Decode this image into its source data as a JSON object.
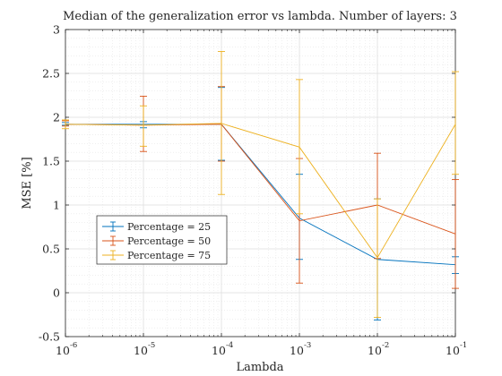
{
  "chart_data": {
    "type": "line",
    "title": "Median of the generalization error vs lambda. Number of layers: 3",
    "xlabel": "Lambda",
    "ylabel": "MSE [%]",
    "xscale": "log",
    "xlim": [
      1e-06,
      0.1
    ],
    "ylim": [
      -0.5,
      3
    ],
    "grid": true,
    "minor_grid": true,
    "legend_position": "lower-left",
    "x": [
      1e-06,
      1e-05,
      0.0001,
      0.001,
      0.01,
      0.1
    ],
    "x_tick_labels": [
      {
        "base": "10",
        "exp": "-6"
      },
      {
        "base": "10",
        "exp": "-5"
      },
      {
        "base": "10",
        "exp": "-4"
      },
      {
        "base": "10",
        "exp": "-3"
      },
      {
        "base": "10",
        "exp": "-2"
      },
      {
        "base": "10",
        "exp": "-1"
      }
    ],
    "y_ticks": [
      -0.5,
      0,
      0.5,
      1,
      1.5,
      2,
      2.5,
      3
    ],
    "y_tick_labels": [
      "-0.5",
      "0",
      "0.5",
      "1",
      "1.5",
      "2",
      "2.5",
      "3"
    ],
    "series": [
      {
        "name": "Percentage = 25",
        "color": "#0072BD",
        "values": [
          1.92,
          1.92,
          1.92,
          0.85,
          0.38,
          0.32
        ],
        "err_low": [
          1.91,
          1.88,
          1.51,
          0.38,
          -0.31,
          0.22
        ],
        "err_high": [
          1.94,
          1.95,
          2.34,
          1.35,
          1.07,
          0.41
        ]
      },
      {
        "name": "Percentage = 50",
        "color": "#D95319",
        "values": [
          1.92,
          1.91,
          1.92,
          0.82,
          1.0,
          0.67
        ],
        "err_low": [
          1.9,
          1.61,
          1.5,
          0.11,
          0.39,
          0.05
        ],
        "err_high": [
          1.96,
          2.24,
          2.35,
          1.53,
          1.59,
          1.29
        ]
      },
      {
        "name": "Percentage = 75",
        "color": "#EDB120",
        "values": [
          1.92,
          1.91,
          1.93,
          1.66,
          0.4,
          1.92
        ],
        "err_low": [
          1.87,
          1.67,
          1.12,
          0.9,
          -0.28,
          1.35
        ],
        "err_high": [
          1.97,
          2.13,
          2.75,
          2.43,
          1.07,
          2.52
        ]
      }
    ]
  }
}
